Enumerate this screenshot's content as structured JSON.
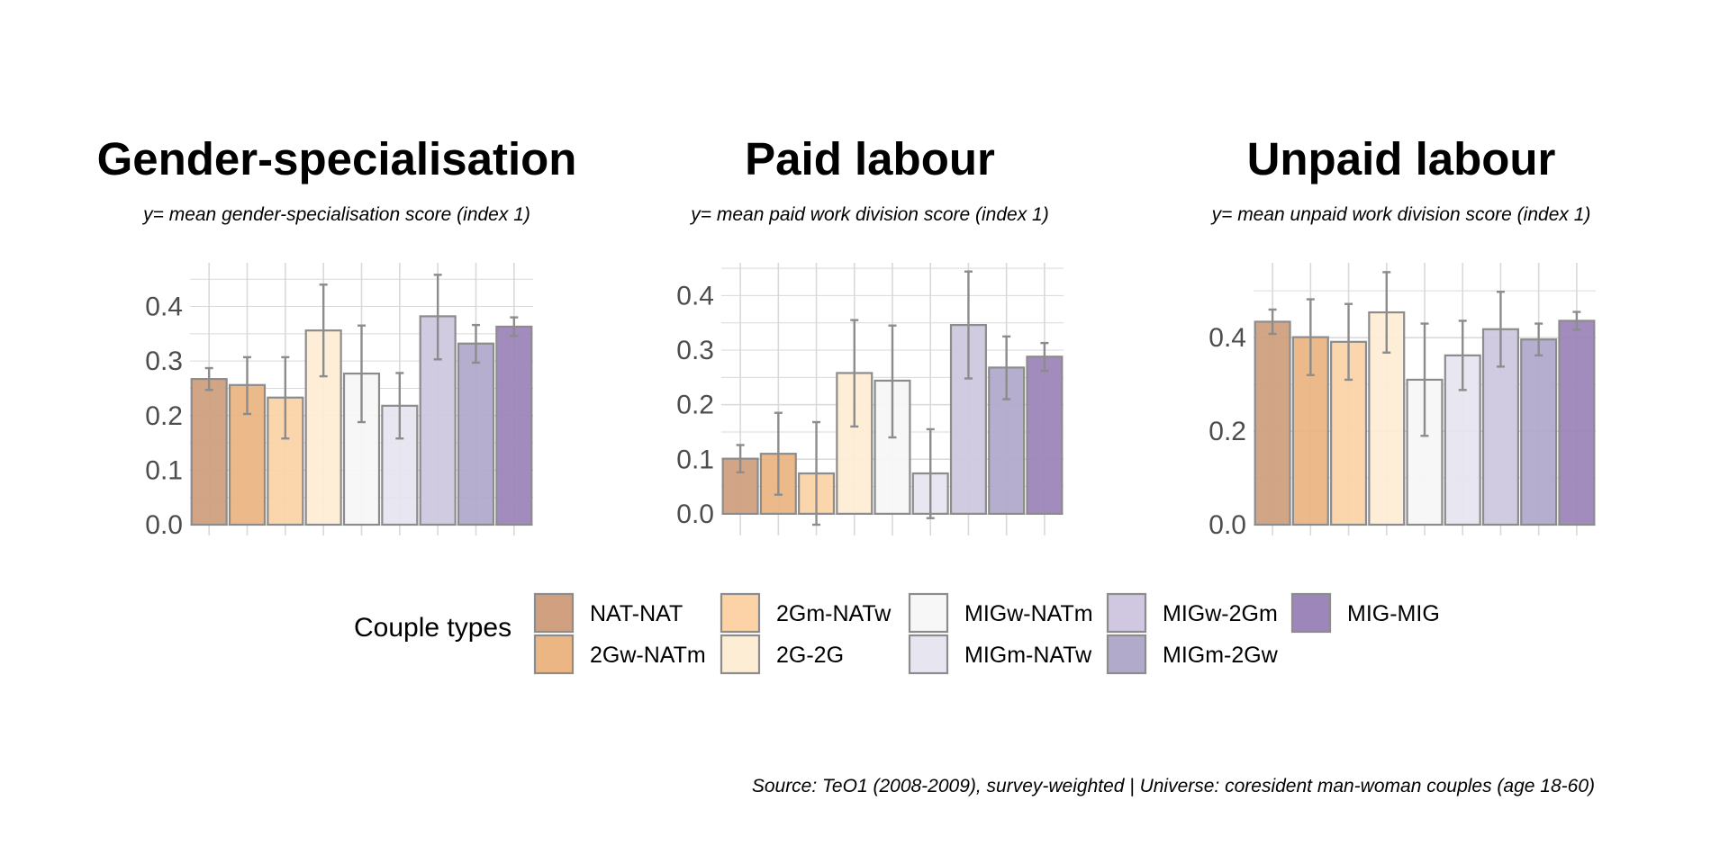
{
  "caption": "Source: TeO1 (2008-2009), survey-weighted | Universe: coresident man-woman couples (age 18-60)",
  "legend": {
    "title": "Couple types",
    "items": [
      {
        "label": "NAT-NAT",
        "color": "#d0a080"
      },
      {
        "label": "2Gw-NATm",
        "color": "#ebb684"
      },
      {
        "label": "2Gm-NATw",
        "color": "#fbd3a6"
      },
      {
        "label": "2G-2G",
        "color": "#feedd5"
      },
      {
        "label": "MIGw-NATm",
        "color": "#f7f7f7"
      },
      {
        "label": "MIGm-NATw",
        "color": "#e6e5f0"
      },
      {
        "label": "MIGw-2Gm",
        "color": "#cfc8e0"
      },
      {
        "label": "MIGm-2Gw",
        "color": "#b1aacb"
      },
      {
        "label": "MIG-MIG",
        "color": "#9d86b9"
      }
    ]
  },
  "chart_data": [
    {
      "type": "bar",
      "title": "Gender-specialisation",
      "subtitle": "y= mean gender-specialisation score (index 1)",
      "categories": [
        "NAT-NAT",
        "2Gw-NATm",
        "2Gm-NATw",
        "2G-2G",
        "MIGw-NATm",
        "MIGm-NATw",
        "MIGw-2Gm",
        "MIGm-2Gw",
        "MIG-MIG"
      ],
      "values": [
        0.267,
        0.256,
        0.233,
        0.356,
        0.277,
        0.218,
        0.382,
        0.332,
        0.363
      ],
      "error_low": [
        0.247,
        0.203,
        0.158,
        0.272,
        0.188,
        0.158,
        0.303,
        0.297,
        0.346
      ],
      "error_high": [
        0.287,
        0.307,
        0.307,
        0.44,
        0.365,
        0.278,
        0.458,
        0.366,
        0.38
      ],
      "ylim": [
        0,
        0.48
      ],
      "yticks": [
        "0.0",
        "0.1",
        "0.2",
        "0.3",
        "0.4"
      ],
      "grid": true
    },
    {
      "type": "bar",
      "title": "Paid labour",
      "subtitle": "y= mean paid work division score (index 1)",
      "categories": [
        "NAT-NAT",
        "2Gw-NATm",
        "2Gm-NATw",
        "2G-2G",
        "MIGw-NATm",
        "MIGm-NATw",
        "MIGw-2Gm",
        "MIGm-2Gw",
        "MIG-MIG"
      ],
      "values": [
        0.101,
        0.11,
        0.074,
        0.258,
        0.244,
        0.074,
        0.346,
        0.268,
        0.288
      ],
      "error_low": [
        0.076,
        0.035,
        -0.02,
        0.16,
        0.14,
        -0.008,
        0.248,
        0.21,
        0.262
      ],
      "error_high": [
        0.126,
        0.185,
        0.168,
        0.355,
        0.345,
        0.155,
        0.444,
        0.325,
        0.313
      ],
      "ylim": [
        -0.02,
        0.46
      ],
      "yticks": [
        "0.0",
        "0.1",
        "0.2",
        "0.3",
        "0.4"
      ],
      "grid": true
    },
    {
      "type": "bar",
      "title": "Unpaid labour",
      "subtitle": "y= mean unpaid work division score (index 1)",
      "categories": [
        "NAT-NAT",
        "2Gw-NATm",
        "2Gm-NATw",
        "2G-2G",
        "MIGw-NATm",
        "MIGm-NATw",
        "MIGw-2Gm",
        "MIGm-2Gw",
        "MIG-MIG"
      ],
      "values": [
        0.434,
        0.401,
        0.391,
        0.454,
        0.31,
        0.362,
        0.418,
        0.396,
        0.436
      ],
      "error_low": [
        0.408,
        0.32,
        0.31,
        0.368,
        0.19,
        0.288,
        0.338,
        0.362,
        0.417
      ],
      "error_high": [
        0.46,
        0.482,
        0.472,
        0.54,
        0.43,
        0.436,
        0.498,
        0.43,
        0.455
      ],
      "ylim": [
        0,
        0.56
      ],
      "yticks": [
        "0.0",
        "0.2",
        "0.4"
      ],
      "grid": true
    }
  ]
}
